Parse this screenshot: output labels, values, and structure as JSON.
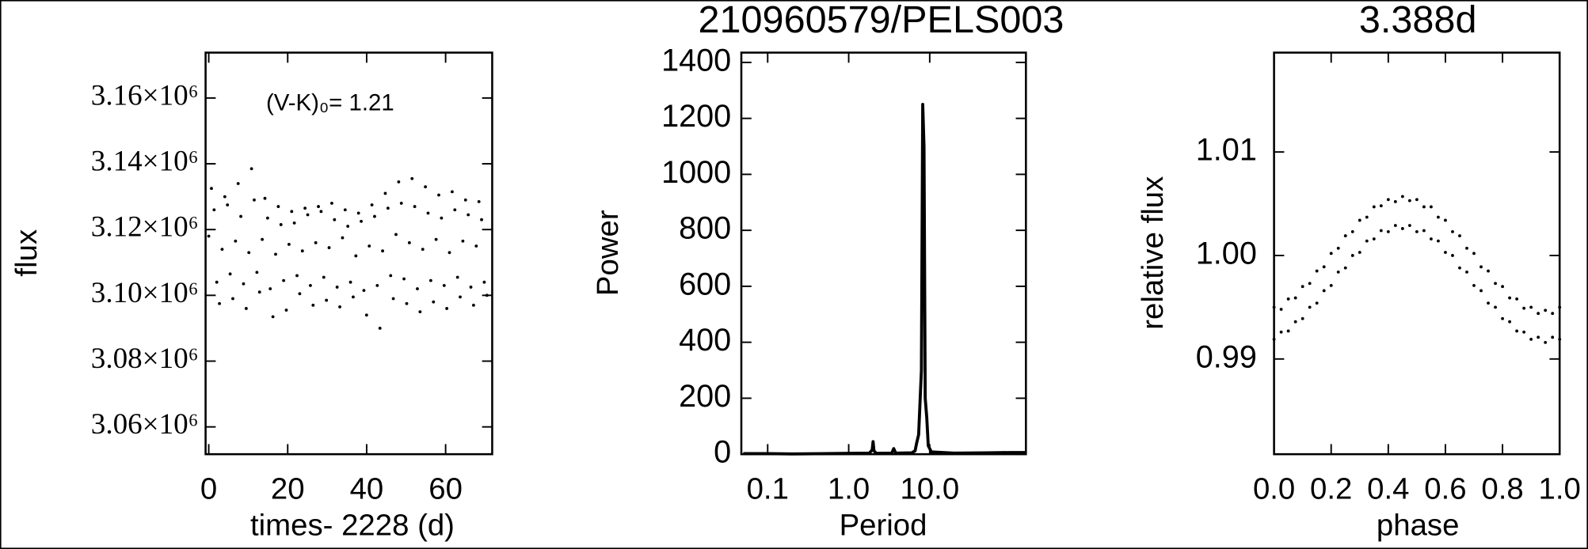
{
  "chart_data": [
    {
      "type": "scatter",
      "color": "#000000",
      "x_label": "times- 2228 (d)",
      "y_label": "flux",
      "annotation": "(V-K)₀= 1.21",
      "xlim": [
        -0.8,
        71.8
      ],
      "xticks": [
        0,
        20,
        40,
        60
      ],
      "ylim": [
        3051700,
        3173800
      ],
      "yticks": [
        {
          "value": 3060000,
          "label": "3.06×10⁶"
        },
        {
          "value": 3080000,
          "label": "3.08×10⁶"
        },
        {
          "value": 3100000,
          "label": "3.10×10⁶"
        },
        {
          "value": 3120000,
          "label": "3.12×10⁶"
        },
        {
          "value": 3140000,
          "label": "3.14×10⁶"
        },
        {
          "value": 3160000,
          "label": "3.16×10⁶"
        }
      ],
      "x": [
        0,
        0.68,
        1.36,
        2.03,
        2.71,
        3.39,
        4.07,
        4.74,
        5.42,
        6.1,
        6.78,
        7.45,
        8.13,
        8.81,
        9.49,
        10.16,
        10.84,
        11.52,
        12.2,
        12.87,
        13.55,
        14.23,
        14.91,
        15.58,
        16.26,
        16.94,
        17.62,
        18.29,
        18.97,
        19.65,
        20.33,
        21.01,
        21.68,
        22.36,
        23.04,
        23.72,
        24.39,
        25.07,
        25.75,
        26.43,
        27.1,
        27.78,
        28.46,
        29.14,
        29.81,
        30.49,
        31.17,
        31.85,
        32.52,
        33.2,
        33.88,
        34.56,
        35.23,
        35.91,
        36.59,
        37.27,
        37.94,
        38.62,
        39.3,
        39.98,
        40.66,
        41.33,
        42.01,
        42.69,
        43.37,
        44.04,
        44.72,
        45.4,
        46.08,
        46.75,
        47.43,
        48.11,
        48.79,
        49.46,
        50.14,
        50.82,
        51.5,
        52.17,
        52.85,
        53.53,
        54.21,
        54.88,
        55.56,
        56.24,
        56.92,
        57.59,
        58.27,
        58.95,
        59.63,
        60.3,
        60.98,
        61.66,
        62.34,
        63.02,
        63.69,
        64.37,
        65.05,
        65.73,
        66.4,
        67.08,
        67.76,
        68.44,
        69.11,
        69.79,
        70.47
      ],
      "values": [
        3118000,
        3132500,
        3126000,
        3104000,
        3097500,
        3114000,
        3130000,
        3127500,
        3106500,
        3099000,
        3116500,
        3134000,
        3124000,
        3103500,
        3096000,
        3113000,
        3138500,
        3129000,
        3107000,
        3101000,
        3117000,
        3129500,
        3123500,
        3102000,
        3093500,
        3112500,
        3127000,
        3121500,
        3104500,
        3095500,
        3115500,
        3125500,
        3122000,
        3106000,
        3100500,
        3113500,
        3126500,
        3124500,
        3103000,
        3097000,
        3116000,
        3127000,
        3125500,
        3105500,
        3098500,
        3114500,
        3128000,
        3123000,
        3102500,
        3096500,
        3117500,
        3126000,
        3121000,
        3104000,
        3099500,
        3112000,
        3125000,
        3122500,
        3101500,
        3094000,
        3115000,
        3127500,
        3124000,
        3103000,
        3090000,
        3113500,
        3131000,
        3126500,
        3106000,
        3099000,
        3118500,
        3134500,
        3128000,
        3105000,
        3097500,
        3116000,
        3135500,
        3127000,
        3102000,
        3095000,
        3114000,
        3133000,
        3125000,
        3104500,
        3098000,
        3117000,
        3130500,
        3123500,
        3103000,
        3096000,
        3113000,
        3131500,
        3126000,
        3105500,
        3099500,
        3116500,
        3129000,
        3124500,
        3102500,
        3097000,
        3115000,
        3128500,
        3123000,
        3104000,
        3100000
      ]
    },
    {
      "type": "line",
      "color": "#000000",
      "title": "210960579/PELS003",
      "x_label": "Period",
      "y_label": "Power",
      "xscale": "log",
      "xlim": [
        0.0473,
        154
      ],
      "xticks": [
        0.1,
        {
          "value": 1,
          "label": "1.0"
        },
        {
          "value": 10,
          "label": "10.0"
        }
      ],
      "ylim": [
        0,
        1435
      ],
      "yticks": [
        0,
        200,
        400,
        600,
        800,
        1000,
        1200,
        1400
      ],
      "x": [
        0.05,
        0.1,
        0.2,
        0.5,
        1.0,
        1.8,
        1.95,
        2.0,
        2.05,
        2.2,
        3.4,
        3.6,
        3.8,
        6.0,
        6.6,
        6.9,
        7.3,
        7.9,
        8.2,
        8.5,
        8.8,
        9.2,
        9.6,
        10.5,
        20,
        50,
        100,
        150
      ],
      "values": [
        2,
        2,
        1,
        2,
        3,
        4,
        15,
        45,
        12,
        3,
        4,
        20,
        4,
        5,
        12,
        40,
        70,
        300,
        1250,
        1100,
        200,
        130,
        30,
        8,
        4,
        5,
        6,
        6
      ]
    },
    {
      "type": "scatter",
      "color": "#000000",
      "title": "3.388d",
      "x_label": "phase",
      "y_label": "relative flux",
      "xlim": [
        0,
        1
      ],
      "xticks": [
        {
          "value": 0,
          "label": "0.0"
        },
        0.2,
        0.4,
        0.6,
        0.8,
        {
          "value": 1,
          "label": "1.0"
        }
      ],
      "ylim": [
        0.9808,
        1.0196
      ],
      "yticks": [
        0.99,
        {
          "value": 1,
          "label": "1.00"
        },
        1.01
      ],
      "x": [
        0,
        0.025,
        0.05,
        0.075,
        0.1,
        0.125,
        0.15,
        0.175,
        0.2,
        0.225,
        0.25,
        0.275,
        0.3,
        0.325,
        0.35,
        0.375,
        0.4,
        0.425,
        0.45,
        0.475,
        0.5,
        0.525,
        0.55,
        0.575,
        0.6,
        0.625,
        0.65,
        0.675,
        0.7,
        0.725,
        0.75,
        0.775,
        0.8,
        0.825,
        0.85,
        0.875,
        0.9,
        0.925,
        0.95,
        0.975,
        1,
        0,
        0.025,
        0.05,
        0.075,
        0.1,
        0.125,
        0.15,
        0.175,
        0.2,
        0.225,
        0.25,
        0.275,
        0.3,
        0.325,
        0.35,
        0.375,
        0.4,
        0.425,
        0.45,
        0.475,
        0.5,
        0.525,
        0.55,
        0.575,
        0.6,
        0.625,
        0.65,
        0.675,
        0.7,
        0.725,
        0.75,
        0.775,
        0.8,
        0.825,
        0.85,
        0.875,
        0.9,
        0.925,
        0.95,
        0.975,
        1
      ],
      "values": [
        0.995,
        0.9948,
        0.9958,
        0.9959,
        0.997,
        0.9973,
        0.9985,
        0.9989,
        1.0002,
        1.0007,
        1.0019,
        1.0023,
        1.0034,
        1.0037,
        1.0047,
        1.0048,
        1.0054,
        1.0052,
        1.0057,
        1.0053,
        1.0054,
        1.0047,
        1.0047,
        1.0037,
        1.0034,
        1.0023,
        1.0019,
        1.0007,
        1.0002,
        0.9989,
        0.9985,
        0.9973,
        0.997,
        0.9959,
        0.9958,
        0.9949,
        0.995,
        0.9944,
        0.9947,
        0.9944,
        0.995,
        0.9919,
        0.9926,
        0.9927,
        0.9936,
        0.9939,
        0.995,
        0.9954,
        0.9966,
        0.9971,
        0.9984,
        0.9988,
        1.0,
        1.0003,
        1.0014,
        1.0016,
        1.0024,
        1.0023,
        1.0029,
        1.0026,
        1.0029,
        1.0023,
        1.0024,
        1.0016,
        1.0014,
        1.0003,
        1.0,
        0.9988,
        0.9984,
        0.9971,
        0.9966,
        0.9954,
        0.995,
        0.9939,
        0.9936,
        0.9927,
        0.9926,
        0.9919,
        0.9921,
        0.9916,
        0.9921,
        0.9919
      ]
    }
  ]
}
